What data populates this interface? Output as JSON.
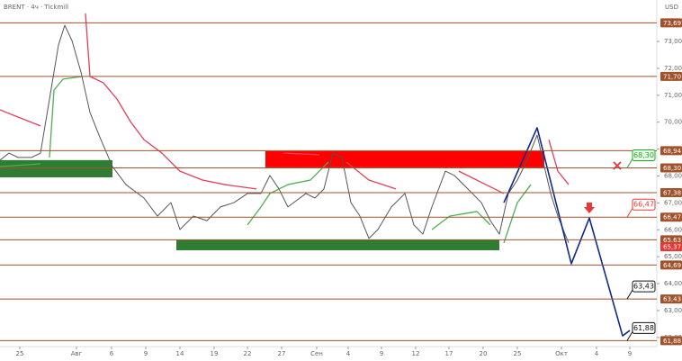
{
  "chart_data": {
    "type": "line",
    "title": "BRENT · 4ч · Tickmill",
    "axis_unit": "USD",
    "xlim": [
      0,
      146
    ],
    "ylim": [
      61.66,
      74.54
    ],
    "grid": false,
    "xticks": [
      {
        "value": 4.4,
        "label": "25"
      },
      {
        "value": 17,
        "label": "Авг"
      },
      {
        "value": 24.8,
        "label": "6"
      },
      {
        "value": 32.4,
        "label": "9"
      },
      {
        "value": 40,
        "label": "14"
      },
      {
        "value": 47.6,
        "label": "19"
      },
      {
        "value": 55,
        "label": "22"
      },
      {
        "value": 62.6,
        "label": "27"
      },
      {
        "value": 70.4,
        "label": "Сен"
      },
      {
        "value": 77.4,
        "label": "4"
      },
      {
        "value": 84.8,
        "label": "9"
      },
      {
        "value": 92.4,
        "label": "12"
      },
      {
        "value": 99.8,
        "label": "17"
      },
      {
        "value": 107.4,
        "label": "20"
      },
      {
        "value": 115,
        "label": "25"
      },
      {
        "value": 124.8,
        "label": "Окт"
      },
      {
        "value": 132.6,
        "label": "4"
      },
      {
        "value": 140,
        "label": "9"
      }
    ],
    "yticks": [
      {
        "value": 73,
        "label": "73,00"
      },
      {
        "value": 72,
        "label": "72,00"
      },
      {
        "value": 71,
        "label": "71,00"
      },
      {
        "value": 70,
        "label": "70,00"
      },
      {
        "value": 69,
        "label": "69,00"
      },
      {
        "value": 68,
        "label": "68,00"
      },
      {
        "value": 67,
        "label": "67,00"
      },
      {
        "value": 66,
        "label": "66,00"
      },
      {
        "value": 65,
        "label": "65,00"
      },
      {
        "value": 64,
        "label": "64,00"
      },
      {
        "value": 63,
        "label": "63,00"
      },
      {
        "value": 62,
        "label": "62,00"
      }
    ],
    "levels": {
      "color": "#a0522d",
      "items": [
        {
          "value": 73.69,
          "label": "73,69"
        },
        {
          "value": 71.7,
          "label": "71,70"
        },
        {
          "value": 68.94,
          "label": "68,94"
        },
        {
          "value": 68.3,
          "label": "68,30"
        },
        {
          "value": 67.38,
          "label": "67,38"
        },
        {
          "value": 66.47,
          "label": "66,47"
        },
        {
          "value": 65.63,
          "label": "65,63"
        },
        {
          "value": 64.69,
          "label": "64,69"
        },
        {
          "value": 63.43,
          "label": "63,43"
        },
        {
          "value": 61.88,
          "label": "61,88"
        }
      ]
    },
    "last_price": {
      "value": 65.37,
      "label": "65,37",
      "color": "#e53935"
    },
    "zones": [
      {
        "x": [
          59,
          121
        ],
        "y": [
          68.32,
          68.92
        ],
        "color": "#ff0000"
      },
      {
        "x": [
          0,
          25
        ],
        "y": [
          67.95,
          68.59
        ],
        "color": "#2e7d32"
      },
      {
        "x": [
          39.2,
          111
        ],
        "y": [
          65.24,
          65.64
        ],
        "color": "#2e7d32"
      }
    ],
    "series": [
      {
        "color": "#555555",
        "width": 1,
        "x": [
          0,
          2,
          4,
          7,
          9,
          11,
          13,
          14.4,
          16,
          18,
          20,
          22,
          25,
          28,
          32,
          35,
          38,
          40,
          43,
          46,
          49,
          52,
          55,
          58,
          60,
          62,
          64,
          68,
          70,
          72,
          74,
          76,
          78,
          80,
          82,
          84,
          87,
          90,
          92,
          94,
          96,
          99,
          101,
          104,
          107,
          109,
          111,
          113,
          115,
          117,
          119.4,
          121,
          122.4,
          124,
          125.6,
          126.4
        ],
        "values": [
          68.59,
          68.85,
          68.69,
          68.69,
          68.85,
          70.86,
          72.87,
          73.6,
          73.03,
          71.86,
          70.36,
          69.52,
          68.35,
          67.68,
          67.18,
          66.51,
          67.01,
          66.01,
          66.51,
          66.34,
          66.85,
          67.01,
          67.35,
          67.35,
          68.02,
          67.52,
          66.85,
          67.35,
          67.18,
          67.52,
          68.85,
          68.69,
          67.01,
          66.51,
          65.68,
          66.01,
          66.85,
          67.35,
          66.18,
          65.84,
          66.85,
          68.18,
          68.02,
          67.52,
          67.01,
          66.34,
          65.84,
          67.35,
          67.85,
          68.52,
          69.52,
          68.35,
          67.35,
          66.51,
          65.84,
          65.51
        ]
      },
      {
        "color": "#e0405a",
        "width": 1.3,
        "x": [
          0,
          4,
          9,
          10,
          19,
          20,
          23,
          26,
          29,
          32,
          36,
          40,
          45,
          50,
          57,
          58,
          63,
          71,
          72,
          77,
          82,
          88,
          91,
          102,
          108,
          112,
          113,
          122,
          124,
          126.4
        ],
        "values": [
          70.46,
          70.19,
          69.86,
          null,
          74.04,
          71.7,
          71.46,
          70.86,
          70.02,
          69.35,
          68.85,
          68.18,
          67.85,
          67.68,
          67.52,
          null,
          68.85,
          68.79,
          null,
          68.52,
          67.85,
          67.52,
          null,
          68.18,
          67.68,
          67.35,
          null,
          69.35,
          68.18,
          67.68
        ]
      },
      {
        "color": "#4caf50",
        "width": 1.3,
        "x": [
          0,
          9,
          9.6,
          11,
          12,
          14,
          18.4,
          18.8,
          55,
          58,
          60,
          64,
          69,
          73,
          75,
          96,
          100,
          106,
          109,
          110.4,
          112,
          115,
          118
        ],
        "values": [
          68.35,
          68.45,
          null,
          68.69,
          71.19,
          71.6,
          71.7,
          null,
          66.18,
          66.85,
          67.35,
          67.68,
          67.85,
          68.52,
          null,
          66.01,
          66.51,
          66.68,
          66.18,
          null,
          65.51,
          67.01,
          67.68
        ]
      },
      {
        "color": "#0d2a8a",
        "width": 1.6,
        "x": [
          112,
          119.4,
          127,
          131,
          138.4,
          140
        ],
        "values": [
          67.01,
          69.79,
          64.74,
          66.44,
          62.06,
          62.26
        ]
      }
    ],
    "callouts": [
      {
        "value": 68.3,
        "label": "68,30",
        "color": "#22aa22",
        "fill": "#e8f8e8"
      },
      {
        "value": 66.47,
        "label": "66,47",
        "color": "#e53935",
        "fill": "#ffffff"
      },
      {
        "value": 63.43,
        "label": "63,43",
        "color": "#111111",
        "fill": "#ffffff"
      },
      {
        "value": 61.88,
        "label": "61,88",
        "color": "#111111",
        "fill": "#ffffff"
      }
    ]
  }
}
